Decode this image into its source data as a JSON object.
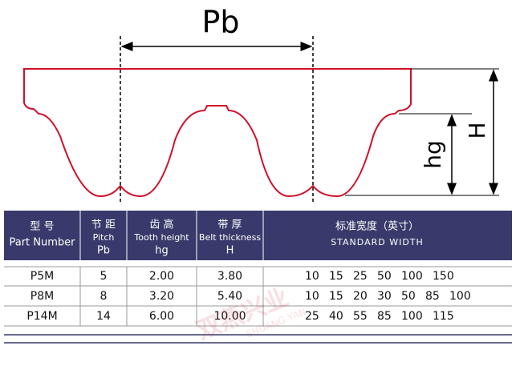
{
  "diagram": {
    "pitch_label": "Pb",
    "tooth_height_label": "hg",
    "thickness_label": "H"
  },
  "watermark": {
    "cn": "双燕兴业",
    "en": "SHUANG YAN"
  },
  "table": {
    "header": [
      [
        "型 号",
        "Part Number"
      ],
      [
        "节 距",
        "Pitch",
        "Pb"
      ],
      [
        "齿 高",
        "Tooth height",
        "hg"
      ],
      [
        "带 厚",
        "Belt thickness",
        "H"
      ],
      [
        "标准宽度（英寸）",
        "STANDARD WIDTH"
      ]
    ],
    "rows": [
      [
        "P5M",
        "5",
        "2.00",
        "3.80",
        [
          "10",
          "15",
          "25",
          "50",
          "100",
          "150"
        ]
      ],
      [
        "P8M",
        "8",
        "3.20",
        "5.40",
        [
          "10",
          "15",
          "20",
          "30",
          "50",
          "85",
          "100"
        ]
      ],
      [
        "P14M",
        "14",
        "6.00",
        "10.00",
        [
          "25",
          "40",
          "55",
          "85",
          "100",
          "115"
        ]
      ]
    ]
  }
}
